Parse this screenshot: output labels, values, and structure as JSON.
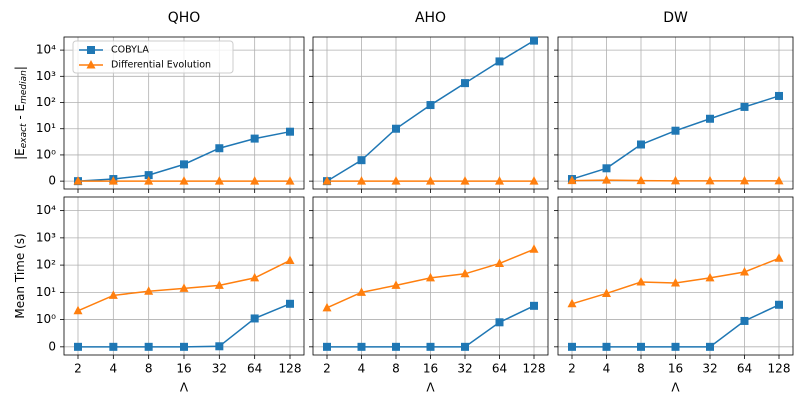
{
  "chart_data": [
    {
      "type": "line",
      "title": "QHO",
      "ylabel": [
        "|E",
        "exact",
        " - E",
        "median",
        "|"
      ],
      "categories": [
        "2",
        "4",
        "8",
        "16",
        "32",
        "64",
        "128"
      ],
      "series": [
        {
          "name": "COBYLA",
          "color": "#1f77b4",
          "marker": "square",
          "values": [
            0,
            0.08,
            0.23,
            0.64,
            1.8,
            4.2,
            7.7
          ]
        },
        {
          "name": "Differential Evolution",
          "color": "#ff7f0e",
          "marker": "triangle",
          "values": [
            0,
            0,
            0,
            0,
            0,
            0,
            0
          ]
        }
      ],
      "yscale": "symlog",
      "ylim": [
        -0.3,
        31623
      ],
      "yticks": [
        0,
        {
          "value": 1,
          "label": "10⁰"
        },
        {
          "value": 10,
          "label": "10¹"
        },
        {
          "value": 100,
          "label": "10²"
        },
        {
          "value": 1000,
          "label": "10³"
        },
        {
          "value": 10000,
          "label": "10⁴"
        }
      ],
      "grid": true,
      "legend": "upper left"
    },
    {
      "type": "line",
      "title": "AHO",
      "categories": [
        "2",
        "4",
        "8",
        "16",
        "32",
        "64",
        "128"
      ],
      "series": [
        {
          "color": "#1f77b4",
          "marker": "square",
          "values": [
            0,
            0.8,
            10,
            80,
            550,
            3700,
            23000
          ]
        },
        {
          "color": "#ff7f0e",
          "marker": "triangle",
          "values": [
            0,
            0,
            0,
            0,
            0,
            0,
            0
          ]
        }
      ],
      "yscale": "symlog",
      "ylim": [
        -0.3,
        31623
      ],
      "yticks": [
        0,
        1,
        10,
        100,
        1000,
        10000
      ],
      "grid": true
    },
    {
      "type": "line",
      "title": "DW",
      "categories": [
        "2",
        "4",
        "8",
        "16",
        "32",
        "64",
        "128"
      ],
      "series": [
        {
          "color": "#1f77b4",
          "marker": "square",
          "values": [
            0.08,
            0.49,
            2.5,
            8.4,
            24,
            68,
            178
          ]
        },
        {
          "color": "#ff7f0e",
          "marker": "triangle",
          "values": [
            0.02,
            0.04,
            0.02,
            0.01,
            0.01,
            0.01,
            0.01
          ]
        }
      ],
      "yscale": "symlog",
      "ylim": [
        -0.3,
        31623
      ],
      "yticks": [
        0,
        1,
        10,
        100,
        1000,
        10000
      ],
      "grid": true
    },
    {
      "type": "line",
      "ylabel": [
        "Mean Time (s)"
      ],
      "xlabel": "Λ",
      "categories": [
        "2",
        "4",
        "8",
        "16",
        "32",
        "64",
        "128"
      ],
      "series": [
        {
          "color": "#1f77b4",
          "marker": "square",
          "values": [
            0,
            0,
            0,
            0,
            0.02,
            1.1,
            3.8
          ]
        },
        {
          "color": "#ff7f0e",
          "marker": "triangle",
          "values": [
            2.1,
            7.7,
            11,
            14,
            18,
            34,
            148
          ]
        }
      ],
      "yscale": "symlog",
      "ylim": [
        -0.3,
        31623
      ],
      "yticks": [
        0,
        {
          "value": 1,
          "label": "10⁰"
        },
        {
          "value": 10,
          "label": "10¹"
        },
        {
          "value": 100,
          "label": "10²"
        },
        {
          "value": 1000,
          "label": "10³"
        },
        {
          "value": 10000,
          "label": "10⁴"
        }
      ],
      "grid": true
    },
    {
      "type": "line",
      "xlabel": "Λ",
      "categories": [
        "2",
        "4",
        "8",
        "16",
        "32",
        "64",
        "128"
      ],
      "series": [
        {
          "color": "#1f77b4",
          "marker": "square",
          "values": [
            0,
            0,
            0,
            0,
            0,
            0.9,
            3.2
          ]
        },
        {
          "color": "#ff7f0e",
          "marker": "triangle",
          "values": [
            2.7,
            10,
            18,
            34,
            48,
            115,
            380
          ]
        }
      ],
      "yscale": "symlog",
      "ylim": [
        -0.3,
        31623
      ],
      "yticks": [
        0,
        1,
        10,
        100,
        1000,
        10000
      ],
      "grid": true
    },
    {
      "type": "line",
      "xlabel": "Λ",
      "categories": [
        "2",
        "4",
        "8",
        "16",
        "32",
        "64",
        "128"
      ],
      "series": [
        {
          "color": "#1f77b4",
          "marker": "square",
          "values": [
            0,
            0,
            0,
            0,
            0,
            0.95,
            3.5
          ]
        },
        {
          "color": "#ff7f0e",
          "marker": "triangle",
          "values": [
            3.8,
            9.1,
            24,
            22,
            34,
            56,
            178
          ]
        }
      ],
      "yscale": "symlog",
      "ylim": [
        -0.3,
        31623
      ],
      "yticks": [
        0,
        1,
        10,
        100,
        1000,
        10000
      ],
      "grid": true
    }
  ]
}
